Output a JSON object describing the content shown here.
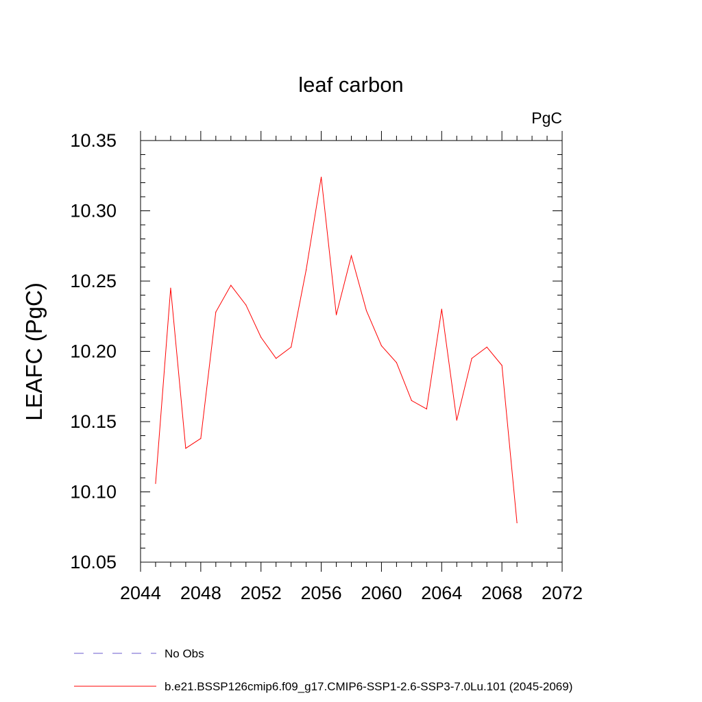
{
  "chart_data": {
    "type": "line",
    "title": "leaf carbon",
    "units": "PgC",
    "ylabel": "LEAFC  (PgC)",
    "xlabel": "",
    "xlim": [
      2044,
      2072
    ],
    "ylim": [
      10.05,
      10.35
    ],
    "x_ticks": [
      "2044",
      "2048",
      "2052",
      "2056",
      "2060",
      "2064",
      "2068",
      "2072"
    ],
    "y_ticks": [
      "10.05",
      "10.10",
      "10.15",
      "10.20",
      "10.25",
      "10.30",
      "10.35"
    ],
    "grid": false,
    "series": [
      {
        "name": "b.e21.BSSP126cmip6.f09_g17.CMIP6-SSP1-2.6-SSP3-7.0Lu.101 (2045-2069)",
        "color": "#ff0000",
        "style": "solid",
        "x": [
          2045,
          2046,
          2047,
          2048,
          2049,
          2050,
          2051,
          2052,
          2053,
          2054,
          2055,
          2056,
          2057,
          2058,
          2059,
          2060,
          2061,
          2062,
          2063,
          2064,
          2065,
          2066,
          2067,
          2068,
          2069
        ],
        "y": [
          10.106,
          10.245,
          10.131,
          10.138,
          10.228,
          10.247,
          10.233,
          10.21,
          10.195,
          10.203,
          10.258,
          10.324,
          10.226,
          10.268,
          10.229,
          10.204,
          10.192,
          10.165,
          10.159,
          10.23,
          10.151,
          10.195,
          10.203,
          10.19,
          10.078
        ]
      }
    ],
    "legend": {
      "placement": "bottom-left",
      "entries": [
        {
          "label": "No Obs",
          "color": "#6a5acd",
          "style": "dashed"
        },
        {
          "label": "b.e21.BSSP126cmip6.f09_g17.CMIP6-SSP1-2.6-SSP3-7.0Lu.101 (2045-2069)",
          "color": "#ff0000",
          "style": "solid"
        }
      ]
    }
  }
}
